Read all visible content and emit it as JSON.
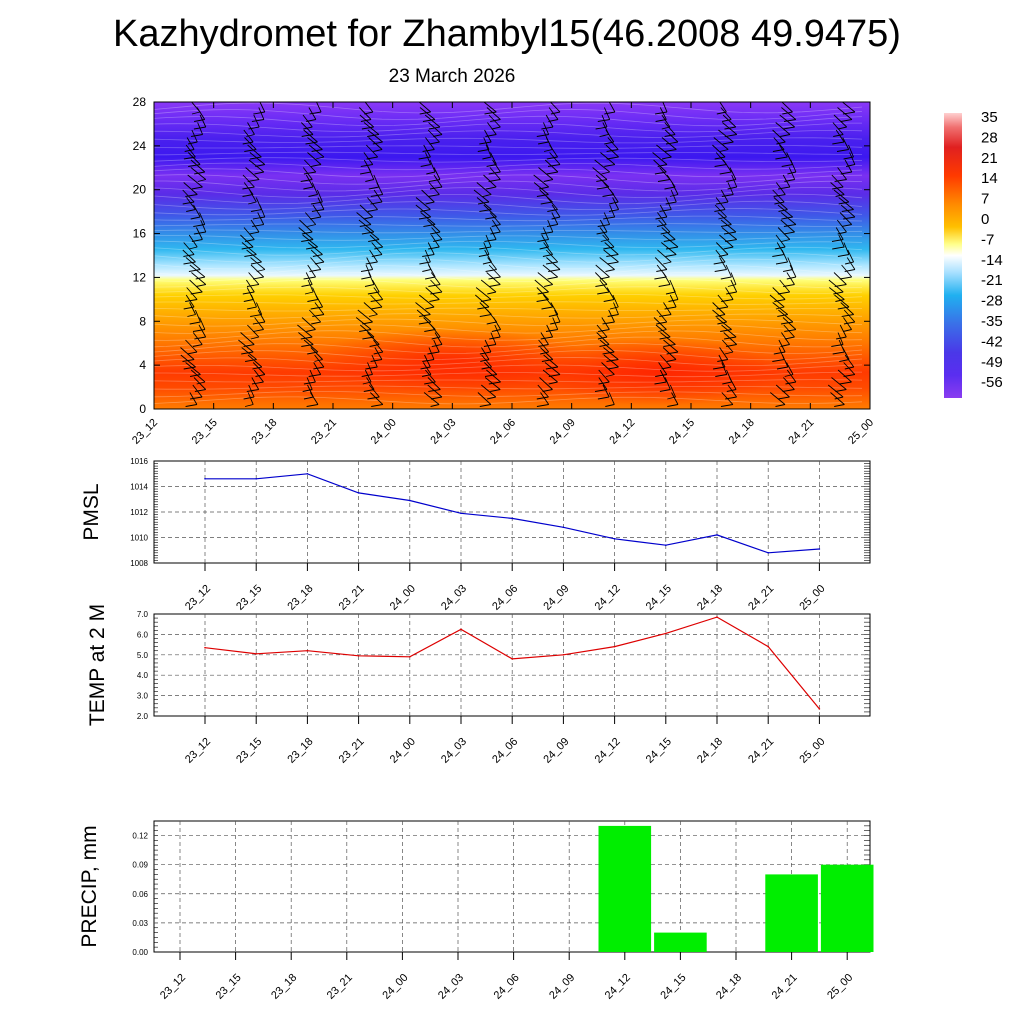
{
  "page": {
    "title": "Kazhydromet for Zhambyl15(46.2008 49.9475)",
    "subtitle": "23 March 2026"
  },
  "colorbar": {
    "labels": [
      "35",
      "28",
      "21",
      "14",
      "7",
      "0",
      "-7",
      "-14",
      "-21",
      "-28",
      "-35",
      "-42",
      "-49",
      "-56"
    ]
  },
  "chart_data": [
    {
      "type": "heatmap",
      "name": "cross-section",
      "title": "",
      "xlabel": "",
      "ylabel": "",
      "x": [
        "23_12",
        "23_15",
        "23_18",
        "23_21",
        "24_00",
        "24_03",
        "24_06",
        "24_09",
        "24_12",
        "24_15",
        "24_18",
        "24_21",
        "25_00"
      ],
      "yticks": [
        0,
        4,
        8,
        12,
        16,
        20,
        24,
        28
      ],
      "ylim": [
        0,
        28
      ],
      "color_range": [
        -56,
        35
      ],
      "overlay": "wind barbs and contour lines"
    },
    {
      "type": "line",
      "name": "pmsl",
      "ylabel": "PMSL",
      "x": [
        "23_12",
        "23_15",
        "23_18",
        "23_21",
        "24_00",
        "24_03",
        "24_06",
        "24_09",
        "24_12",
        "24_15",
        "24_18",
        "24_21",
        "25_00"
      ],
      "values": [
        1014.6,
        1014.6,
        1015.0,
        1013.5,
        1012.9,
        1011.9,
        1011.5,
        1010.8,
        1009.9,
        1009.4,
        1010.2,
        1008.8,
        1009.1
      ],
      "yticks": [
        1008,
        1010,
        1012,
        1014,
        1016
      ],
      "ylim": [
        1008,
        1016
      ],
      "color": "#0000cc",
      "grid": true
    },
    {
      "type": "line",
      "name": "temp",
      "ylabel": "TEMP at 2 M",
      "x": [
        "23_12",
        "23_15",
        "23_18",
        "23_21",
        "24_00",
        "24_03",
        "24_06",
        "24_09",
        "24_12",
        "24_15",
        "24_18",
        "24_21",
        "25_00"
      ],
      "values": [
        5.35,
        5.05,
        5.2,
        4.95,
        4.9,
        6.25,
        4.8,
        5.0,
        5.4,
        6.05,
        6.85,
        5.4,
        2.35
      ],
      "yticks": [
        "2.0",
        "3.0",
        "4.0",
        "5.0",
        "6.0",
        "7.0"
      ],
      "ylim": [
        2.0,
        7.0
      ],
      "color": "#dd0000",
      "grid": true
    },
    {
      "type": "bar",
      "name": "precip",
      "ylabel": "PRECIP, mm",
      "categories": [
        "23_12",
        "23_15",
        "23_18",
        "23_21",
        "24_00",
        "24_03",
        "24_06",
        "24_09",
        "24_12",
        "24_15",
        "24_18",
        "24_21",
        "25_00"
      ],
      "values": [
        0,
        0,
        0,
        0,
        0,
        0,
        0,
        0,
        0.13,
        0.02,
        0,
        0.08,
        0.09
      ],
      "yticks": [
        "0.00",
        "0.03",
        "0.06",
        "0.09",
        "0.12"
      ],
      "ylim": [
        0,
        0.135
      ],
      "color": "#00ee00",
      "grid": true
    }
  ]
}
